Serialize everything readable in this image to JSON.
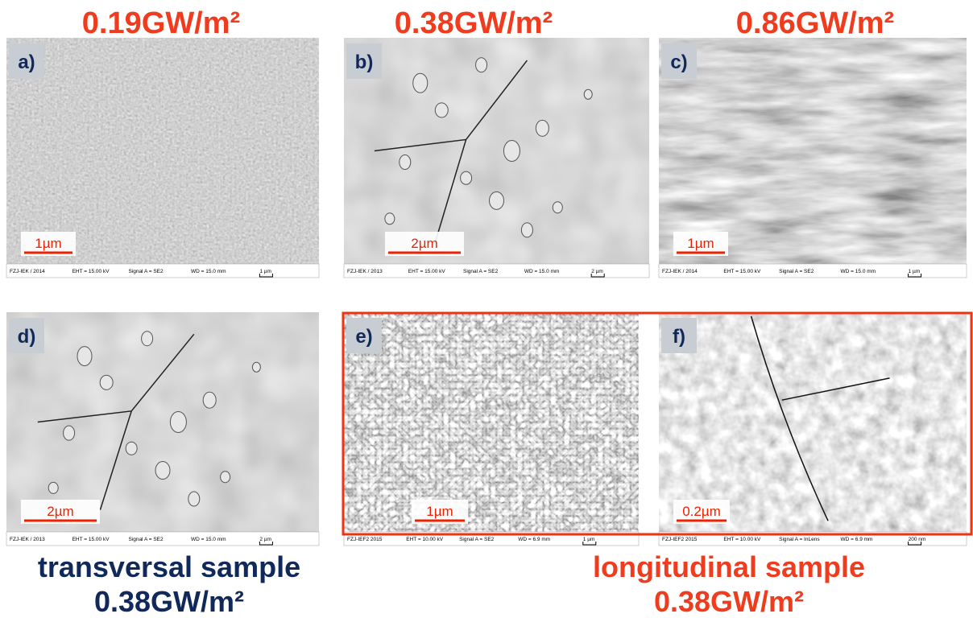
{
  "headers": [
    "0.19GW/m²",
    "0.38GW/m²",
    "0.86GW/m²"
  ],
  "panels": [
    {
      "label": "a)",
      "scale": "1µm",
      "info": [
        "FZJ-IEK / 2014",
        "EHT = 15.00 kV",
        "Signal A = SE2",
        "WD = 15.0 mm",
        "1 µm"
      ]
    },
    {
      "label": "b)",
      "scale": "2µm",
      "info": [
        "FZJ-IEK / 2013",
        "EHT = 15.00 kV",
        "Signal A = SE2",
        "WD = 15.0 mm",
        "2 µm"
      ]
    },
    {
      "label": "c)",
      "scale": "1µm",
      "info": [
        "FZJ-IEK / 2014",
        "EHT = 15.00 kV",
        "Signal A = SE2",
        "WD = 15.0 mm",
        "1 µm"
      ]
    },
    {
      "label": "d)",
      "scale": "2µm",
      "info": [
        "FZJ-IEK / 2013",
        "EHT = 15.00 kV",
        "Signal A = SE2",
        "WD = 15.0 mm",
        "2 µm"
      ]
    },
    {
      "label": "e)",
      "scale": "1µm",
      "info": [
        "FZJ-IEF2 2015",
        "EHT = 10.00 kV",
        "Signal A = SE2",
        "WD = 6.9 mm",
        "1 µm"
      ]
    },
    {
      "label": "f)",
      "scale": "0.2µm",
      "info": [
        "FZJ-IEF2 2015",
        "EHT = 10.00 kV",
        "Signal A = InLens",
        "WD = 6.9 mm",
        "200 nm"
      ]
    }
  ],
  "captions": {
    "transversal": {
      "title": "transversal sample",
      "value": "0.38GW/m²"
    },
    "longitudinal": {
      "title": "longitudinal sample",
      "value": "0.38GW/m²"
    }
  }
}
